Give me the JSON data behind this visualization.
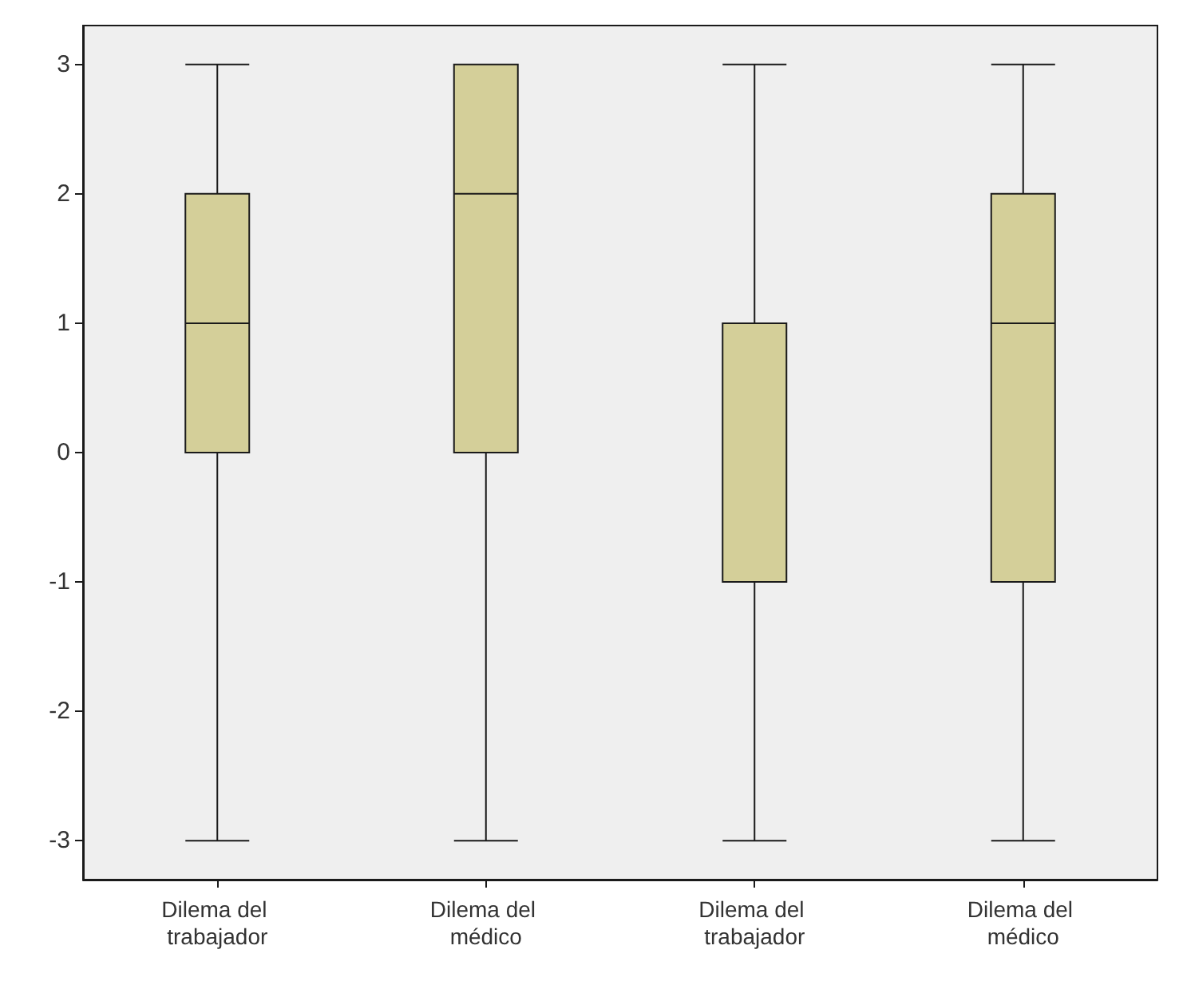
{
  "chart_data": {
    "type": "box",
    "categories": [
      "Dilema del trabajador",
      "Dilema del médico",
      "Dilema del trabajador",
      "Dilema del médico"
    ],
    "color": "#d4cf99",
    "boxes": [
      {
        "low": -3,
        "q1": 0,
        "median": 1,
        "q3": 2,
        "high": 3
      },
      {
        "low": -3,
        "q1": 0,
        "median": 2,
        "q3": 3,
        "high": 3
      },
      {
        "low": -3,
        "q1": -1,
        "median": 1,
        "q3": 1,
        "high": 3
      },
      {
        "low": -3,
        "q1": -1,
        "median": 1,
        "q3": 2,
        "high": 3
      }
    ],
    "ylim": [
      -3.3,
      3.3
    ],
    "yticks": [
      -3,
      -2,
      -1,
      0,
      1,
      2,
      3
    ],
    "grid": false
  }
}
